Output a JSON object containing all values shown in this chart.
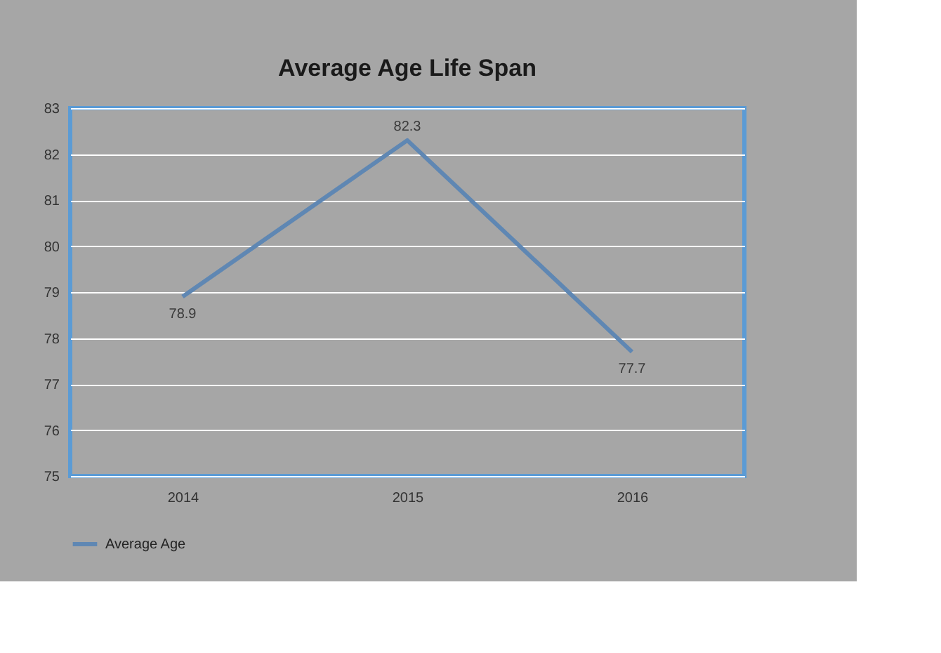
{
  "chart_data": {
    "type": "line",
    "title": "Average Age Life Span",
    "categories": [
      "2014",
      "2015",
      "2016"
    ],
    "series": [
      {
        "name": "Average Age",
        "color": "#5f87b3",
        "values": [
          78.9,
          82.3,
          77.7
        ]
      }
    ],
    "ylim": [
      75,
      83
    ],
    "yticks": [
      75,
      76,
      77,
      78,
      79,
      80,
      81,
      82,
      83
    ],
    "grid": "y",
    "legend": "bottom",
    "data_labels": true,
    "marker": "none",
    "line_style": "solid"
  }
}
